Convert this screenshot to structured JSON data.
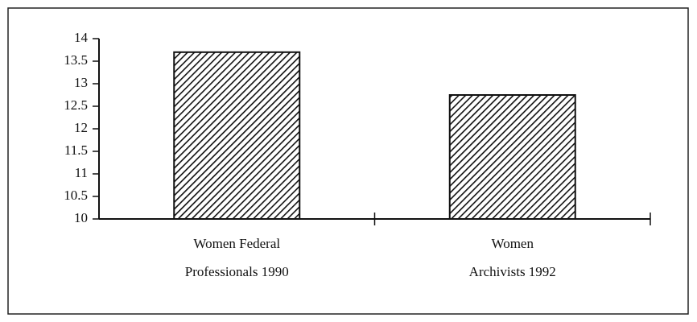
{
  "chart_data": {
    "type": "bar",
    "categories": [
      "Women Federal Professionals 1990",
      "Women Archivists 1992"
    ],
    "values": [
      13.7,
      12.75
    ],
    "color": "#111111",
    "ylim": [
      10,
      14
    ],
    "yticks": [
      10,
      10.5,
      11,
      11.5,
      12,
      12.5,
      13,
      13.5,
      14
    ]
  }
}
